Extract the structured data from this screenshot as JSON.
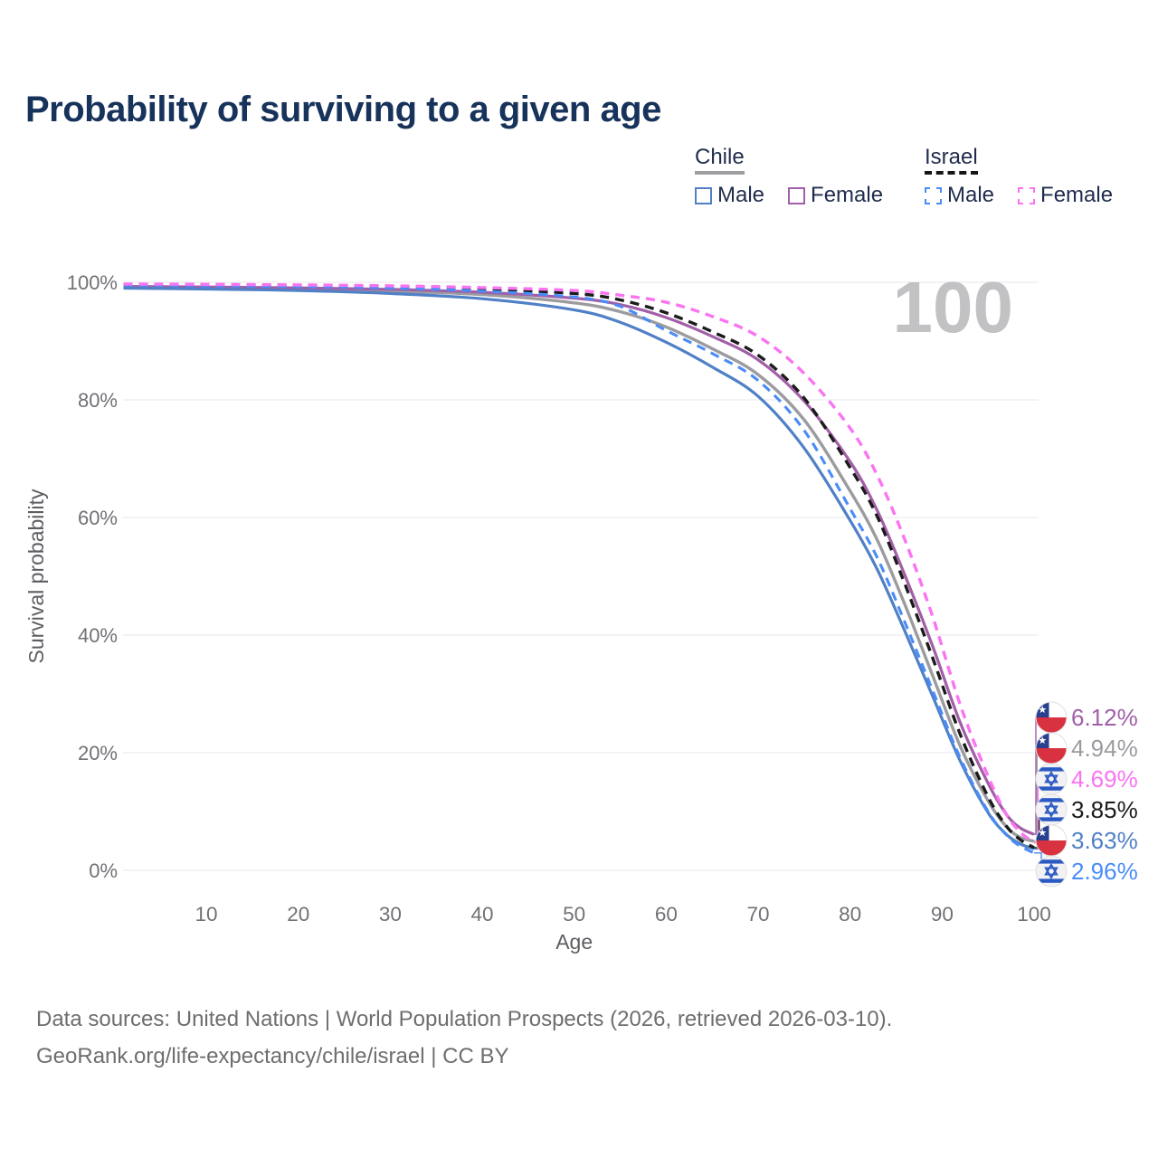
{
  "title": "Probability of surviving to a given age",
  "legend": {
    "groups": [
      {
        "label": "Chile",
        "underline_color": "#9e9ea2",
        "dashed": false,
        "entries": [
          {
            "label": "Male",
            "color": "#5080c6",
            "dashed": false
          },
          {
            "label": "Female",
            "color": "#a25fa7",
            "dashed": false
          }
        ]
      },
      {
        "label": "Israel",
        "underline_color": "#161616",
        "dashed": true,
        "entries": [
          {
            "label": "Male",
            "color": "#4a8cf7",
            "dashed": true
          },
          {
            "label": "Female",
            "color": "#fa74f2",
            "dashed": true
          }
        ]
      }
    ]
  },
  "chart_data": {
    "type": "line",
    "title": "Probability of surviving to a given age",
    "xlabel": "Age",
    "ylabel": "Survival probability",
    "watermark": "100",
    "xlim": [
      1,
      100
    ],
    "ylim": [
      0,
      100
    ],
    "grid": true,
    "x_ticks": [
      10,
      20,
      30,
      40,
      50,
      60,
      70,
      80,
      90,
      100
    ],
    "y_ticks": [
      0,
      20,
      40,
      60,
      80,
      100
    ],
    "y_tick_suffix": "%",
    "x": [
      1,
      10,
      20,
      30,
      40,
      50,
      55,
      60,
      65,
      70,
      75,
      80,
      83,
      86,
      89,
      92,
      95,
      97,
      98.5,
      100
    ],
    "series": [
      {
        "id": "chile-both",
        "name": "Chile",
        "country": "chile",
        "sex": "both",
        "color": "#9c9ca0",
        "dashed": false,
        "width": 3.4,
        "values": [
          99.2,
          99.05,
          98.85,
          98.5,
          97.9,
          96.5,
          95.0,
          92.4,
          88.7,
          84.3,
          76.6,
          64.5,
          56.0,
          45.0,
          33.0,
          21.0,
          11.8,
          7.4,
          5.6,
          4.94
        ],
        "end_label": "4.94%"
      },
      {
        "id": "chile-female",
        "name": "Chile Female",
        "country": "chile",
        "sex": "female",
        "color": "#a25fa7",
        "dashed": false,
        "width": 3.2,
        "values": [
          99.3,
          99.2,
          99.05,
          98.8,
          98.3,
          97.3,
          96.2,
          94.0,
          90.8,
          86.8,
          79.8,
          69.5,
          61.0,
          50.0,
          38.0,
          25.0,
          14.8,
          9.5,
          7.2,
          6.12
        ],
        "end_label": "6.12%"
      },
      {
        "id": "chile-male",
        "name": "Chile Male",
        "country": "chile",
        "sex": "male",
        "color": "#5080c6",
        "dashed": false,
        "width": 3.2,
        "values": [
          99.0,
          98.85,
          98.6,
          98.1,
          97.2,
          95.3,
          93.2,
          89.8,
          85.6,
          80.6,
          71.8,
          59.5,
          51.0,
          40.5,
          29.5,
          18.5,
          9.8,
          6.1,
          4.5,
          3.63
        ],
        "end_label": "3.63%"
      },
      {
        "id": "israel-both",
        "name": "Israel",
        "country": "israel",
        "sex": "both",
        "color": "#1b1b1b",
        "dashed": true,
        "width": 3.4,
        "values": [
          99.6,
          99.55,
          99.4,
          99.2,
          98.8,
          98.1,
          97.0,
          94.8,
          91.6,
          87.6,
          80.3,
          68.5,
          60.0,
          48.5,
          36.0,
          23.0,
          12.5,
          7.5,
          5.2,
          3.85
        ],
        "end_label": "3.85%"
      },
      {
        "id": "israel-male",
        "name": "Israel Male",
        "country": "israel",
        "sex": "male",
        "color": "#4a8cf7",
        "dashed": true,
        "width": 3.1,
        "values": [
          99.5,
          99.4,
          99.25,
          99.0,
          98.5,
          97.5,
          95.9,
          91.8,
          87.9,
          83.3,
          74.8,
          61.5,
          53.0,
          42.0,
          30.5,
          19.0,
          10.0,
          6.0,
          4.1,
          2.96
        ],
        "end_label": "2.96%"
      },
      {
        "id": "israel-female",
        "name": "Israel Female",
        "country": "israel",
        "sex": "female",
        "color": "#fa74f2",
        "dashed": true,
        "width": 3.4,
        "values": [
          99.7,
          99.65,
          99.55,
          99.4,
          99.1,
          98.6,
          97.8,
          96.6,
          94.2,
          90.8,
          84.5,
          75.2,
          67.0,
          56.0,
          43.0,
          28.0,
          16.0,
          9.5,
          6.5,
          4.69
        ],
        "end_label": "4.69%"
      }
    ],
    "colors": {
      "grid": "#ececef",
      "tick_text": "#717176",
      "axis_title": "#5d5d62",
      "watermark": "#c2c2c4",
      "chile_flag_blue": "#29418e",
      "chile_flag_red": "#d8313f",
      "israel_flag_blue": "#2b59c3"
    }
  },
  "footer": {
    "line1": "Data sources: United Nations | World Population Prospects (2026, retrieved 2026-03-10).",
    "line2": "GeoRank.org/life-expectancy/chile/israel | CC BY"
  }
}
